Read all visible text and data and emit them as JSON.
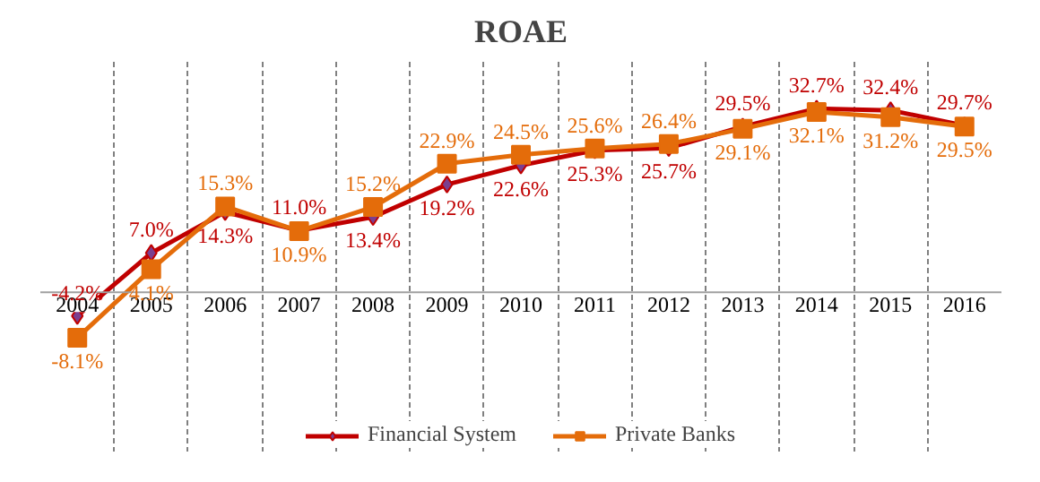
{
  "chart_data": {
    "type": "line",
    "title": "ROAE",
    "categories": [
      "2004",
      "2005",
      "2006",
      "2007",
      "2008",
      "2009",
      "2010",
      "2011",
      "2012",
      "2013",
      "2014",
      "2015",
      "2016"
    ],
    "series": [
      {
        "name": "Financial System",
        "color": "#c00000",
        "marker": "diamond",
        "values": [
          -4.2,
          7.0,
          14.3,
          11.0,
          13.4,
          19.2,
          22.6,
          25.3,
          25.7,
          29.5,
          32.7,
          32.4,
          29.7
        ],
        "value_labels": [
          "-4.2%",
          "7.0%",
          "14.3%",
          "11.0%",
          "13.4%",
          "19.2%",
          "22.6%",
          "25.3%",
          "25.7%",
          "29.5%",
          "32.7%",
          "32.4%",
          "29.7%"
        ]
      },
      {
        "name": "Private Banks",
        "color": "#e46c0a",
        "marker": "square",
        "values": [
          -8.1,
          4.1,
          15.3,
          10.9,
          15.2,
          22.9,
          24.5,
          25.6,
          26.4,
          29.1,
          32.1,
          31.2,
          29.5
        ],
        "value_labels": [
          "-8.1%",
          "4.1%",
          "15.3%",
          "10.9%",
          "15.2%",
          "22.9%",
          "24.5%",
          "25.6%",
          "26.4%",
          "29.1%",
          "32.1%",
          "31.2%",
          "29.5%"
        ]
      }
    ],
    "grid": "x",
    "legend": "bottom"
  }
}
